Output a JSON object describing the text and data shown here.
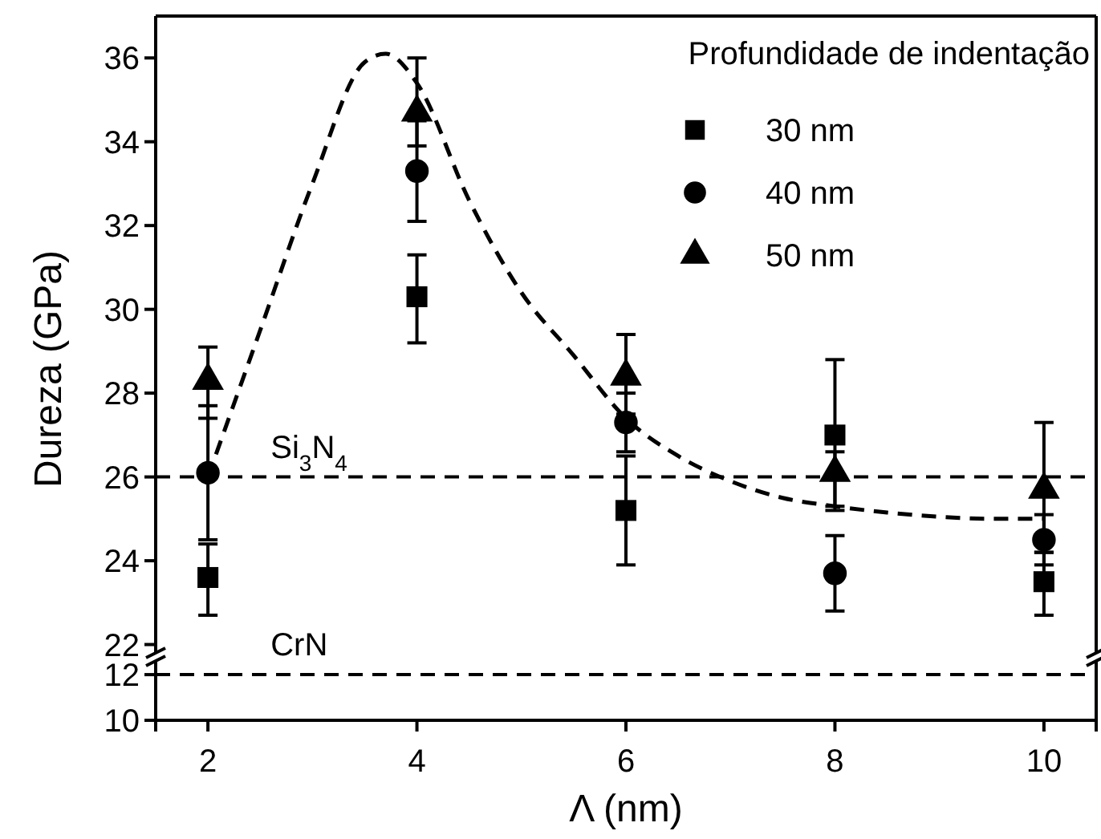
{
  "chart_data": [
    {
      "type": "scatter",
      "ylabel": "Dureza (GPa)",
      "legend_title": "Profundidade de indentação",
      "legend": "top right",
      "tick_labels": "y",
      "grid": false,
      "x": [
        2,
        4,
        6,
        8,
        10
      ],
      "xlim": [
        1.5,
        10.5
      ],
      "ylim": [
        21.8,
        37
      ],
      "yticks": [
        22,
        24,
        26,
        28,
        30,
        32,
        34,
        36
      ],
      "series": [
        {
          "name": "30 nm",
          "color": "#000000",
          "marker": "square",
          "values": [
            23.6,
            30.3,
            25.2,
            27.0,
            23.5
          ],
          "errors": [
            [
              22.7,
              24.4
            ],
            [
              29.2,
              31.3
            ],
            [
              23.9,
              26.5
            ],
            [
              25.2,
              28.8
            ],
            [
              22.7,
              24.2
            ]
          ]
        },
        {
          "name": "40 nm",
          "color": "#000000",
          "marker": "circle",
          "values": [
            26.1,
            33.3,
            27.3,
            23.7,
            24.5
          ],
          "errors": [
            [
              24.5,
              27.7
            ],
            [
              32.1,
              34.5
            ],
            [
              26.6,
              28.0
            ],
            [
              22.8,
              24.6
            ],
            [
              23.9,
              25.1
            ]
          ]
        },
        {
          "name": "50 nm",
          "color": "#000000",
          "marker": "triangle",
          "values": [
            28.3,
            34.7,
            28.4,
            26.1,
            25.7
          ],
          "errors": [
            [
              27.4,
              29.1
            ],
            [
              33.9,
              36.0
            ],
            [
              27.5,
              29.4
            ],
            [
              25.3,
              26.6
            ],
            [
              24.2,
              27.3
            ]
          ]
        },
        {
          "type": "line",
          "color": "#000000",
          "marker": "none",
          "line_style": "dashed",
          "x": [
            2,
            2.5,
            3,
            3.5,
            3.7,
            4,
            4.5,
            5,
            5.5,
            6,
            6.5,
            7,
            7.5,
            8,
            8.5,
            9,
            9.5,
            10
          ],
          "values": [
            26.0,
            29.5,
            33.0,
            35.9,
            36.1,
            35.4,
            32.6,
            30.4,
            28.9,
            27.4,
            26.5,
            25.9,
            25.5,
            25.3,
            25.15,
            25.05,
            25.0,
            25.0
          ]
        }
      ],
      "ref_lines": [
        {
          "axis": "y",
          "value": 26,
          "label": "Si$_{3}$N$_{4}$",
          "line_style": "dashed",
          "color": "#000000"
        }
      ]
    },
    {
      "type": "scatter",
      "xlabel": "Λ (nm)",
      "xlim": [
        1.5,
        10.5
      ],
      "xticks": [
        2,
        4,
        6,
        8,
        10
      ],
      "ylim": [
        10,
        12.6
      ],
      "yticks": [
        10,
        12
      ],
      "grid": false,
      "ref_lines": [
        {
          "axis": "y",
          "value": 12,
          "label": "CrN",
          "line_style": "dashed",
          "color": "#000000"
        }
      ]
    }
  ]
}
